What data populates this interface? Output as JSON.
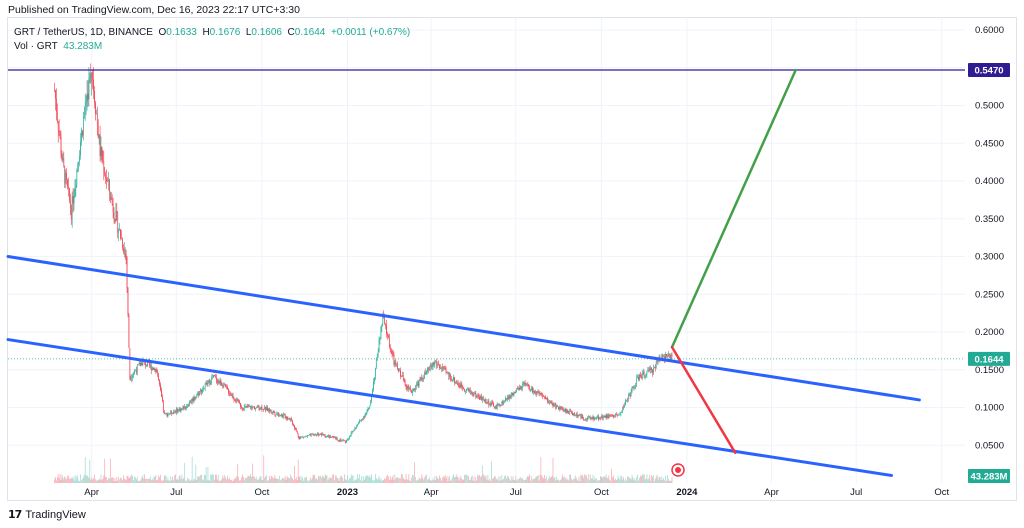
{
  "header": {
    "published": "Published on TradingView.com, Dec 16, 2023 22:17 UTC+3:30"
  },
  "legend": {
    "symbol": "GRT / TetherUS, 1D, BINANCE",
    "open_label": "O",
    "open": "0.1633",
    "high_label": "H",
    "high": "0.1676",
    "low_label": "L",
    "low": "0.1606",
    "close_label": "C",
    "close": "0.1644",
    "change": "+0.0011 (+0.67%)",
    "vol_label": "Vol · GRT",
    "vol_value": "43.283M"
  },
  "footer": {
    "brand": "TradingView",
    "logo_icon": "tradingview-logo-icon"
  },
  "badges": {
    "level": "0.5470",
    "last_price": "0.1644",
    "volume": "43.283M"
  },
  "colors": {
    "up": "#22ab94",
    "down": "#f23645",
    "channel": "#2962ff",
    "target_up": "#43a047",
    "target_down": "#f23645",
    "resistance": "#311b92",
    "grid": "#f0f3fa"
  },
  "chart_data": {
    "type": "candlestick",
    "y_ticks": [
      "0.6000",
      "0.5500",
      "0.5000",
      "0.4500",
      "0.4000",
      "0.3500",
      "0.3000",
      "0.2500",
      "0.2000",
      "0.1500",
      "0.1000",
      "0.0500"
    ],
    "x_ticks": [
      "Apr",
      "Jul",
      "Oct",
      "2023",
      "Apr",
      "Jul",
      "Oct",
      "2024",
      "Apr",
      "Jul",
      "Oct"
    ],
    "ylim": [
      0.0,
      0.6
    ],
    "price_path": [
      [
        "2022-02-20",
        0.52
      ],
      [
        "2022-03-01",
        0.42
      ],
      [
        "2022-03-10",
        0.36
      ],
      [
        "2022-03-25",
        0.5
      ],
      [
        "2022-04-01",
        0.55
      ],
      [
        "2022-04-10",
        0.44
      ],
      [
        "2022-04-25",
        0.36
      ],
      [
        "2022-05-08",
        0.3
      ],
      [
        "2022-05-12",
        0.14
      ],
      [
        "2022-05-25",
        0.16
      ],
      [
        "2022-06-10",
        0.15
      ],
      [
        "2022-06-18",
        0.09
      ],
      [
        "2022-07-10",
        0.1
      ],
      [
        "2022-08-10",
        0.14
      ],
      [
        "2022-08-20",
        0.13
      ],
      [
        "2022-09-10",
        0.1
      ],
      [
        "2022-10-01",
        0.1
      ],
      [
        "2022-11-01",
        0.085
      ],
      [
        "2022-11-10",
        0.06
      ],
      [
        "2022-12-01",
        0.065
      ],
      [
        "2022-12-30",
        0.055
      ],
      [
        "2023-01-25",
        0.1
      ],
      [
        "2023-02-08",
        0.22
      ],
      [
        "2023-02-20",
        0.16
      ],
      [
        "2023-03-10",
        0.12
      ],
      [
        "2023-04-05",
        0.16
      ],
      [
        "2023-05-01",
        0.13
      ],
      [
        "2023-06-10",
        0.1
      ],
      [
        "2023-07-10",
        0.13
      ],
      [
        "2023-08-15",
        0.1
      ],
      [
        "2023-09-15",
        0.085
      ],
      [
        "2023-10-20",
        0.09
      ],
      [
        "2023-11-10",
        0.14
      ],
      [
        "2023-11-25",
        0.15
      ],
      [
        "2023-12-05",
        0.17
      ],
      [
        "2023-12-16",
        0.1644
      ]
    ],
    "lines": [
      {
        "name": "",
        "from": [
          "2022-01-01",
          0.3
        ],
        "to": [
          "2024-09-07",
          0.11
        ]
      },
      {
        "name": "",
        "from": [
          "2022-01-01",
          0.19
        ],
        "to": [
          "2024-08-08",
          0.01
        ]
      },
      {
        "name": "",
        "from": [
          "2023-12-16",
          0.18
        ],
        "to": [
          "2024-04-27",
          0.547
        ]
      },
      {
        "name": "",
        "from": [
          "2023-12-16",
          0.18
        ],
        "to": [
          "2024-02-22",
          0.04
        ]
      }
    ],
    "horizontal_levels": [
      0.547,
      0.1644
    ],
    "legend": "none",
    "grid": true
  }
}
